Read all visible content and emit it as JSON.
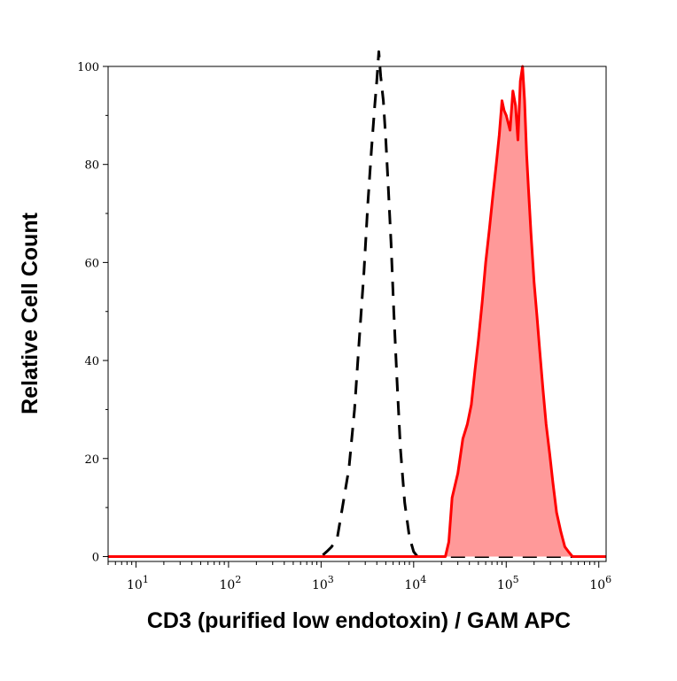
{
  "chart_data": {
    "type": "area",
    "title": "",
    "xlabel": "CD3 (purified low endotoxin) / GAM APC",
    "ylabel": "Relative Cell Count",
    "x_scale": "log",
    "xlim": [
      5,
      1200000
    ],
    "ylim": [
      -1,
      100
    ],
    "grid": false,
    "legend": "none",
    "x_ticks": [
      {
        "value": 10,
        "base": "10",
        "exp": "1"
      },
      {
        "value": 100,
        "base": "10",
        "exp": "2"
      },
      {
        "value": 1000,
        "base": "10",
        "exp": "3"
      },
      {
        "value": 10000,
        "base": "10",
        "exp": "4"
      },
      {
        "value": 100000,
        "base": "10",
        "exp": "5"
      },
      {
        "value": 1000000,
        "base": "10",
        "exp": "6"
      }
    ],
    "y_ticks": [
      {
        "value": 0,
        "label": "0"
      },
      {
        "value": 20,
        "label": "20"
      },
      {
        "value": 40,
        "label": "40"
      },
      {
        "value": 60,
        "label": "60"
      },
      {
        "value": 80,
        "label": "80"
      },
      {
        "value": 100,
        "label": "100"
      }
    ],
    "series": [
      {
        "style": "dashed",
        "color": "#000000",
        "fill": "none",
        "x": [
          5,
          1000,
          1150,
          1300,
          1500,
          1700,
          2000,
          2300,
          2600,
          2900,
          3200,
          3500,
          3800,
          4000,
          4200,
          4400,
          4700,
          5000,
          5300,
          5700,
          6100,
          6600,
          7200,
          8000,
          9000,
          10000,
          11000,
          12000,
          1200000
        ],
        "y": [
          0,
          0,
          1,
          2,
          4,
          10,
          18,
          30,
          45,
          58,
          72,
          83,
          92,
          97,
          103,
          98,
          93,
          85,
          76,
          64,
          50,
          36,
          22,
          11,
          4,
          1,
          0,
          0,
          0
        ]
      },
      {
        "style": "solid",
        "color": "#ff0000",
        "fill": "#ff9999",
        "x": [
          5,
          22000,
          24000,
          26000,
          30000,
          34000,
          38000,
          42000,
          46000,
          50000,
          55000,
          60000,
          66000,
          72000,
          78000,
          84000,
          90000,
          95000,
          100000,
          110000,
          118000,
          126000,
          134000,
          142000,
          150000,
          158000,
          166000,
          174000,
          185000,
          200000,
          215000,
          230000,
          250000,
          270000,
          295000,
          320000,
          350000,
          390000,
          430000,
          470000,
          520000,
          1200000
        ],
        "y": [
          0,
          0,
          3,
          12,
          17,
          24,
          27,
          31,
          38,
          44,
          52,
          60,
          67,
          74,
          80,
          86,
          93,
          91,
          90,
          87,
          95,
          92,
          85,
          97,
          100,
          93,
          82,
          75,
          66,
          56,
          49,
          42,
          34,
          27,
          21,
          15,
          9,
          5,
          2,
          1,
          0,
          0
        ]
      }
    ]
  }
}
